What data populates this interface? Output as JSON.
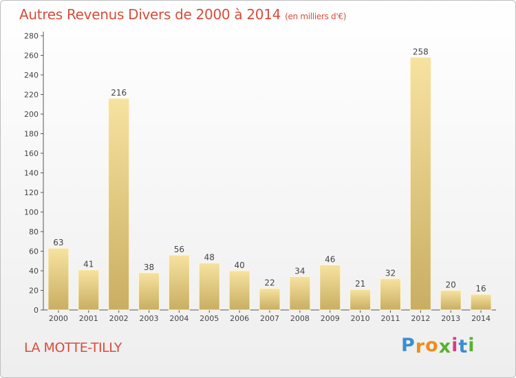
{
  "header": {
    "title": "Autres Revenus Divers de 2000 à 2014",
    "unit": "(en milliers d'€)"
  },
  "location": "LA MOTTE-TILLY",
  "brand": {
    "letters": [
      "P",
      "r",
      "o",
      "x",
      "i",
      "t",
      "i"
    ],
    "colors": [
      "#3a8fd0",
      "#f08c1a",
      "#f08c1a",
      "#5bb030",
      "#d93b8c",
      "#3a8fd0",
      "#5bb030"
    ]
  },
  "colors": {
    "title": "#d94c3a",
    "bar_light": "#f7e2a0",
    "bar_dark": "#c9ae62"
  },
  "chart_data": {
    "type": "bar",
    "categories": [
      "2000",
      "2001",
      "2002",
      "2003",
      "2004",
      "2005",
      "2006",
      "2007",
      "2008",
      "2009",
      "2010",
      "2011",
      "2012",
      "2013",
      "2014"
    ],
    "values": [
      63,
      41,
      216,
      38,
      56,
      48,
      40,
      22,
      34,
      46,
      21,
      32,
      258,
      20,
      16
    ],
    "ylim": [
      0,
      280
    ],
    "yticks": [
      0,
      20,
      40,
      60,
      80,
      100,
      120,
      140,
      160,
      180,
      200,
      220,
      240,
      260,
      280
    ],
    "grid": false,
    "legend": "none"
  }
}
